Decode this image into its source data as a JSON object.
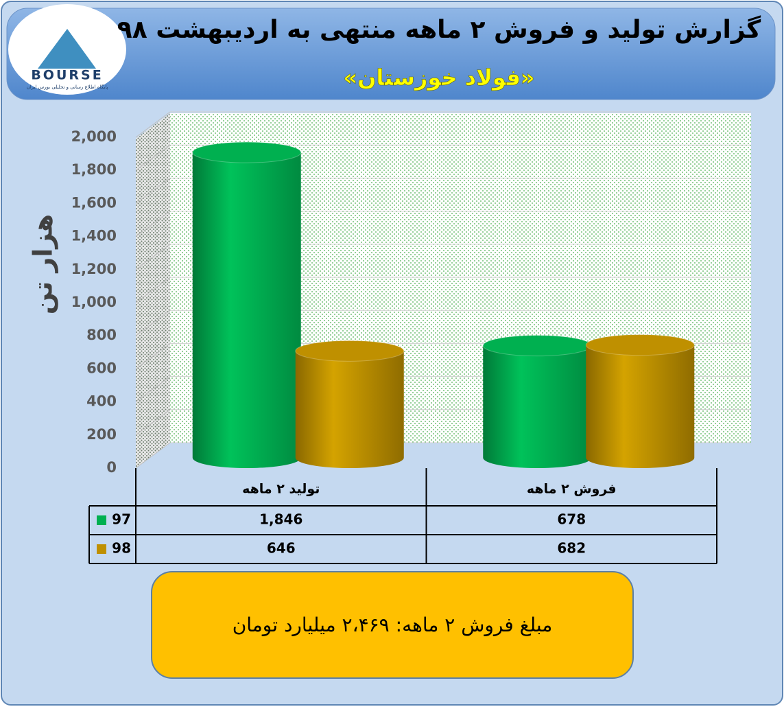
{
  "chart_data": {
    "type": "bar3d",
    "title": "گزارش تولید و فروش ۲ ماهه منتهی به اردیبهشت ۹۸",
    "subtitle": "«فولاد خوزستان»",
    "logo": {
      "text": "BOURSE",
      "tagline": "پایگاه اطلاع رسانی و تحلیلی بورس ایران"
    },
    "ylabel": "هزار تن",
    "categories": [
      "تولید ۲ ماهه",
      "فروش ۲ ماهه"
    ],
    "series": [
      {
        "name": "97",
        "color": "#00b050",
        "values": [
          1846,
          678
        ],
        "value_labels": [
          "1,846",
          "678"
        ]
      },
      {
        "name": "98",
        "color": "#bf9000",
        "values": [
          646,
          682
        ],
        "value_labels": [
          "646",
          "682"
        ]
      }
    ],
    "ylim": [
      0,
      2000
    ],
    "yticks": [
      0,
      200,
      400,
      600,
      800,
      {
        "value": 1000,
        "label": "1,000"
      },
      {
        "value": 1200,
        "label": "1,200"
      },
      {
        "value": 1400,
        "label": "1,400"
      },
      {
        "value": 1600,
        "label": "1,600"
      },
      {
        "value": 1800,
        "label": "1,800"
      },
      {
        "value": 2000,
        "label": "2,000"
      }
    ],
    "grid": true,
    "note": "مبلغ فروش ۲ ماهه: ۲،۴۶۹ میلیارد تومان"
  }
}
